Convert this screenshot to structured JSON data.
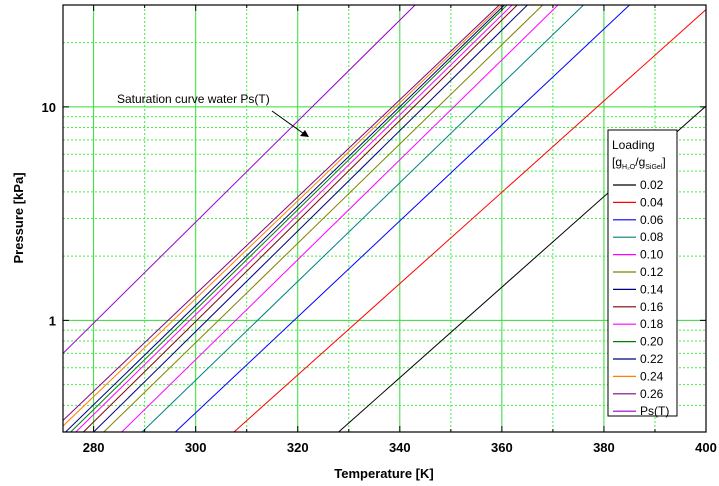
{
  "chart_data": {
    "type": "line",
    "xlabel": "Temperature [K]",
    "ylabel": "Pressure [kPa]",
    "xlim": [
      274,
      400
    ],
    "ylim": [
      0.3,
      30
    ],
    "y_scale": "log",
    "grid": true,
    "x_ticks": [
      "280",
      "300",
      "320",
      "340",
      "360",
      "380",
      "400"
    ],
    "y_ticks": [
      "1",
      "10"
    ],
    "legend": {
      "title": "Loading",
      "unit": {
        "open": "[g",
        "sub1": "H₂O",
        "slash": "/g",
        "sub2": "SiGel",
        "close": "]"
      },
      "placement": "right"
    },
    "annotation": "Saturation curve water Ps(T)",
    "series": [
      {
        "name": "0.02",
        "color": "#000000",
        "x": [
          328,
          401
        ],
        "y": [
          0.3,
          10.6
        ]
      },
      {
        "name": "0.04",
        "color": "#ff0000",
        "x": [
          307.5,
          401
        ],
        "y": [
          0.3,
          30
        ]
      },
      {
        "name": "0.06",
        "color": "#0000ff",
        "x": [
          296,
          385
        ],
        "y": [
          0.3,
          30
        ]
      },
      {
        "name": "0.08",
        "color": "#008080",
        "x": [
          289.5,
          376
        ],
        "y": [
          0.3,
          30
        ]
      },
      {
        "name": "0.10",
        "color": "#ff00ff",
        "x": [
          285.5,
          371
        ],
        "y": [
          0.3,
          30
        ]
      },
      {
        "name": "0.12",
        "color": "#808000",
        "x": [
          282,
          368
        ],
        "y": [
          0.3,
          30
        ]
      },
      {
        "name": "0.14",
        "color": "#000080",
        "x": [
          280,
          365
        ],
        "y": [
          0.3,
          30
        ]
      },
      {
        "name": "0.16",
        "color": "#800000",
        "x": [
          278,
          363
        ],
        "y": [
          0.3,
          30
        ]
      },
      {
        "name": "0.18",
        "color": "#ff00ff",
        "x": [
          276.5,
          362
        ],
        "y": [
          0.3,
          30
        ]
      },
      {
        "name": "0.20",
        "color": "#008000",
        "x": [
          275.5,
          361
        ],
        "y": [
          0.3,
          30
        ]
      },
      {
        "name": "0.22",
        "color": "#000080",
        "x": [
          274.5,
          360.5
        ],
        "y": [
          0.3,
          30
        ]
      },
      {
        "name": "0.24",
        "color": "#ff8000",
        "x": [
          274,
          360
        ],
        "y": [
          0.32,
          30
        ]
      },
      {
        "name": "0.26",
        "color": "#800080",
        "x": [
          274,
          359.5
        ],
        "y": [
          0.34,
          30
        ]
      },
      {
        "name": "Ps(T)",
        "color": "#9900cc",
        "x": [
          274,
          343
        ],
        "y": [
          0.7,
          30
        ]
      }
    ]
  }
}
